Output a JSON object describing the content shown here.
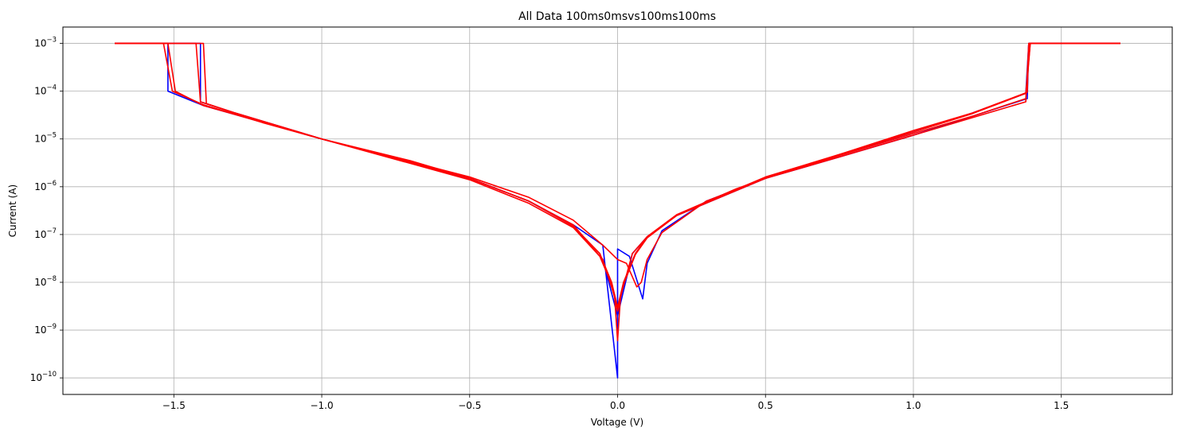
{
  "chart_data": {
    "type": "line",
    "title": "All Data 100ms0msvs100ms100ms",
    "xlabel": "Voltage (V)",
    "ylabel": "Current (A)",
    "xlim": [
      -1.875,
      1.875
    ],
    "ylim": [
      4.5e-11,
      0.0022
    ],
    "yscale": "log",
    "grid": true,
    "x_ticks": [
      {
        "value": -1.5,
        "label": "−1.5"
      },
      {
        "value": -1.0,
        "label": "−1.0"
      },
      {
        "value": -0.5,
        "label": "−0.5"
      },
      {
        "value": 0.0,
        "label": "0.0"
      },
      {
        "value": 0.5,
        "label": "0.5"
      },
      {
        "value": 1.0,
        "label": "1.0"
      },
      {
        "value": 1.5,
        "label": "1.5"
      }
    ],
    "y_ticks": [
      {
        "value": 1e-10,
        "base": "10",
        "exp": "−10"
      },
      {
        "value": 1e-09,
        "base": "10",
        "exp": "−9"
      },
      {
        "value": 1e-08,
        "base": "10",
        "exp": "−8"
      },
      {
        "value": 1e-07,
        "base": "10",
        "exp": "−7"
      },
      {
        "value": 1e-06,
        "base": "10",
        "exp": "−6"
      },
      {
        "value": 1e-05,
        "base": "10",
        "exp": "−5"
      },
      {
        "value": 0.0001,
        "base": "10",
        "exp": "−4"
      },
      {
        "value": 0.001,
        "base": "10",
        "exp": "−3"
      }
    ],
    "series": [
      {
        "color": "#0000ff",
        "points": [
          [
            -1.7,
            0.001
          ],
          [
            -1.52,
            0.001
          ],
          [
            -1.52,
            0.0001
          ],
          [
            -1.4,
            5e-05
          ],
          [
            -1.0,
            1e-05
          ],
          [
            -0.5,
            1.5e-06
          ],
          [
            -0.3,
            5e-07
          ],
          [
            -0.15,
            1.6e-07
          ],
          [
            -0.05,
            6e-08
          ],
          [
            0.0,
            1e-10
          ],
          [
            0.0,
            5e-08
          ],
          [
            0.04,
            3.5e-08
          ],
          [
            0.085,
            4.5e-09
          ],
          [
            0.1,
            2.5e-08
          ],
          [
            0.15,
            1.2e-07
          ],
          [
            0.3,
            5e-07
          ],
          [
            0.5,
            1.5e-06
          ],
          [
            0.75,
            4.2e-06
          ],
          [
            1.0,
            1.2e-05
          ],
          [
            1.2,
            3e-05
          ],
          [
            1.385,
            7e-05
          ],
          [
            1.39,
            0.001
          ],
          [
            1.7,
            0.001
          ]
        ]
      },
      {
        "color": "#0000ff",
        "points": [
          [
            -1.7,
            0.001
          ],
          [
            -1.41,
            0.001
          ],
          [
            -1.41,
            6e-05
          ],
          [
            -1.3,
            3.6e-05
          ],
          [
            -1.0,
            1e-05
          ],
          [
            -0.5,
            1.5e-06
          ],
          [
            -0.3,
            5e-07
          ],
          [
            -0.15,
            1.5e-07
          ],
          [
            -0.05,
            3e-08
          ],
          [
            0.0,
            2e-09
          ],
          [
            0.05,
            4e-08
          ],
          [
            0.1,
            9e-08
          ],
          [
            0.2,
            2.5e-07
          ],
          [
            0.5,
            1.5e-06
          ],
          [
            1.0,
            1.4e-05
          ],
          [
            1.2,
            3.5e-05
          ],
          [
            1.38,
            9e-05
          ],
          [
            1.39,
            0.001
          ],
          [
            1.7,
            0.001
          ]
        ]
      },
      {
        "color": "#ff0000",
        "points": [
          [
            -1.7,
            0.001
          ],
          [
            -1.535,
            0.001
          ],
          [
            -1.505,
            0.0001
          ],
          [
            -1.4,
            5.2e-05
          ],
          [
            -1.2,
            2.2e-05
          ],
          [
            -1.0,
            1e-05
          ],
          [
            -0.7,
            3.5e-06
          ],
          [
            -0.5,
            1.5e-06
          ],
          [
            -0.3,
            5e-07
          ],
          [
            -0.15,
            1.5e-07
          ],
          [
            -0.06,
            4e-08
          ],
          [
            -0.02,
            1e-08
          ],
          [
            0.0,
            3e-09
          ],
          [
            0.02,
            1e-08
          ],
          [
            0.06,
            4e-08
          ],
          [
            0.1,
            9e-08
          ],
          [
            0.2,
            2.6e-07
          ],
          [
            0.4,
            9e-07
          ],
          [
            0.5,
            1.5e-06
          ],
          [
            0.75,
            4.5e-06
          ],
          [
            1.0,
            1.3e-05
          ],
          [
            1.2,
            3e-05
          ],
          [
            1.38,
            7e-05
          ],
          [
            1.395,
            0.001
          ],
          [
            1.7,
            0.001
          ]
        ]
      },
      {
        "color": "#ff0000",
        "points": [
          [
            -1.7,
            0.001
          ],
          [
            -1.52,
            0.001
          ],
          [
            -1.495,
            0.0001
          ],
          [
            -1.4,
            5e-05
          ],
          [
            -1.0,
            1e-05
          ],
          [
            -0.5,
            1.4e-06
          ],
          [
            -0.3,
            4.5e-07
          ],
          [
            -0.15,
            1.4e-07
          ],
          [
            -0.06,
            3.5e-08
          ],
          [
            -0.02,
            9e-09
          ],
          [
            0.0,
            2.5e-09
          ],
          [
            0.02,
            9e-09
          ],
          [
            0.06,
            3.8e-08
          ],
          [
            0.1,
            8.5e-08
          ],
          [
            0.2,
            2.5e-07
          ],
          [
            0.5,
            1.5e-06
          ],
          [
            1.0,
            1.5e-05
          ],
          [
            1.2,
            3.5e-05
          ],
          [
            1.385,
            9.5e-05
          ],
          [
            1.39,
            0.001
          ],
          [
            1.7,
            0.001
          ]
        ]
      },
      {
        "color": "#ff0000",
        "points": [
          [
            -1.7,
            0.001
          ],
          [
            -1.465,
            0.001
          ],
          [
            -1.425,
            0.001
          ],
          [
            -1.41,
            6e-05
          ],
          [
            -1.3,
            3.6e-05
          ],
          [
            -1.0,
            1e-05
          ],
          [
            -0.5,
            1.6e-06
          ],
          [
            -0.3,
            6e-07
          ],
          [
            -0.15,
            2e-07
          ],
          [
            -0.05,
            6e-08
          ],
          [
            0.0,
            3e-08
          ],
          [
            0.03,
            2.5e-08
          ],
          [
            0.065,
            8e-09
          ],
          [
            0.08,
            1e-08
          ],
          [
            0.1,
            3e-08
          ],
          [
            0.15,
            1.1e-07
          ],
          [
            0.3,
            5e-07
          ],
          [
            0.5,
            1.5e-06
          ],
          [
            0.75,
            4.2e-06
          ],
          [
            1.0,
            1.2e-05
          ],
          [
            1.2,
            2.8e-05
          ],
          [
            1.38,
            6e-05
          ],
          [
            1.39,
            0.001
          ],
          [
            1.7,
            0.001
          ]
        ]
      },
      {
        "color": "#ff0000",
        "points": [
          [
            -1.7,
            0.001
          ],
          [
            -1.45,
            0.001
          ],
          [
            -1.4,
            0.001
          ],
          [
            -1.39,
            5.5e-05
          ],
          [
            -1.3,
            3.6e-05
          ],
          [
            -1.0,
            1e-05
          ],
          [
            -0.5,
            1.5e-06
          ],
          [
            -0.3,
            5e-07
          ],
          [
            -0.15,
            1.6e-07
          ],
          [
            -0.05,
            3e-08
          ],
          [
            -0.01,
            5e-09
          ],
          [
            0.0,
            6e-10
          ],
          [
            0.01,
            5e-09
          ],
          [
            0.05,
            4e-08
          ],
          [
            0.1,
            9e-08
          ],
          [
            0.2,
            2.6e-07
          ],
          [
            0.5,
            1.6e-06
          ],
          [
            1.0,
            1.4e-05
          ],
          [
            1.2,
            3.4e-05
          ],
          [
            1.38,
            9e-05
          ],
          [
            1.395,
            0.001
          ],
          [
            1.7,
            0.001
          ]
        ]
      }
    ]
  }
}
